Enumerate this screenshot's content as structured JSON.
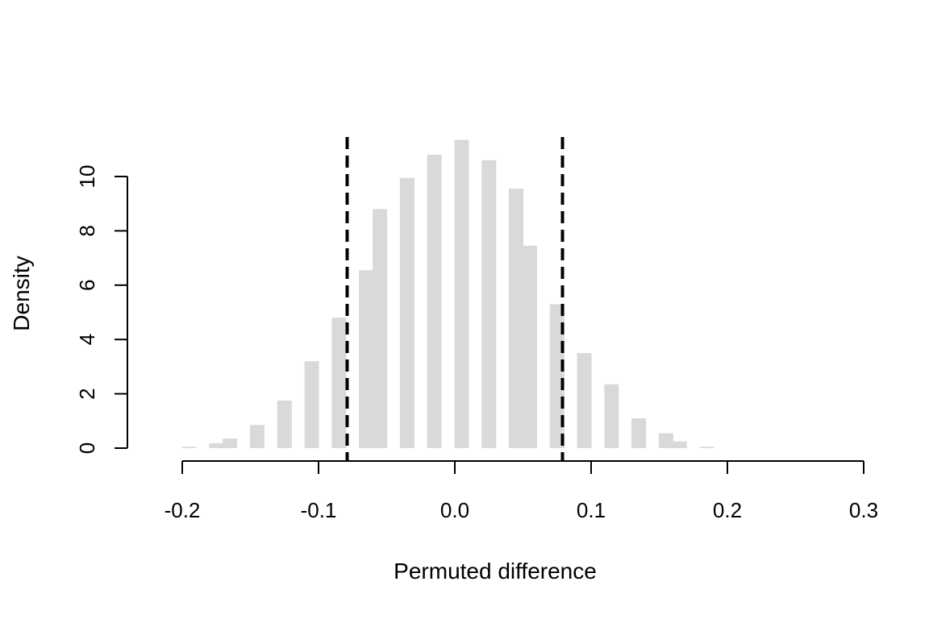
{
  "chart_data": {
    "type": "bar",
    "title": "",
    "xlabel": "Permuted difference",
    "ylabel": "Density",
    "xlim": [
      -0.2,
      0.3
    ],
    "ylim": [
      0,
      10
    ],
    "x_ticks": [
      "-0.2",
      "-0.1",
      "0.0",
      "0.1",
      "0.2",
      "0.3"
    ],
    "y_ticks": [
      "0",
      "2",
      "4",
      "6",
      "8",
      "10"
    ],
    "grid": false,
    "legend": "none",
    "bar_color": "#d9d9d9",
    "bars": [
      {
        "x": -0.195,
        "density": 0.05
      },
      {
        "x": -0.175,
        "density": 0.18
      },
      {
        "x": -0.165,
        "density": 0.35
      },
      {
        "x": -0.145,
        "density": 0.85
      },
      {
        "x": -0.125,
        "density": 1.75
      },
      {
        "x": -0.105,
        "density": 3.2
      },
      {
        "x": -0.085,
        "density": 4.8
      },
      {
        "x": -0.065,
        "density": 6.55
      },
      {
        "x": -0.055,
        "density": 8.8
      },
      {
        "x": -0.035,
        "density": 9.95
      },
      {
        "x": -0.015,
        "density": 10.8
      },
      {
        "x": 0.005,
        "density": 11.35
      },
      {
        "x": 0.025,
        "density": 10.6
      },
      {
        "x": 0.045,
        "density": 9.55
      },
      {
        "x": 0.055,
        "density": 7.45
      },
      {
        "x": 0.075,
        "density": 5.3
      },
      {
        "x": 0.095,
        "density": 3.5
      },
      {
        "x": 0.115,
        "density": 2.35
      },
      {
        "x": 0.135,
        "density": 1.1
      },
      {
        "x": 0.155,
        "density": 0.55
      },
      {
        "x": 0.165,
        "density": 0.25
      },
      {
        "x": 0.185,
        "density": 0.05
      }
    ],
    "reference_lines": [
      {
        "x": -0.079,
        "style": "dashed",
        "color": "#000000"
      },
      {
        "x": 0.079,
        "style": "dashed",
        "color": "#000000"
      }
    ]
  }
}
